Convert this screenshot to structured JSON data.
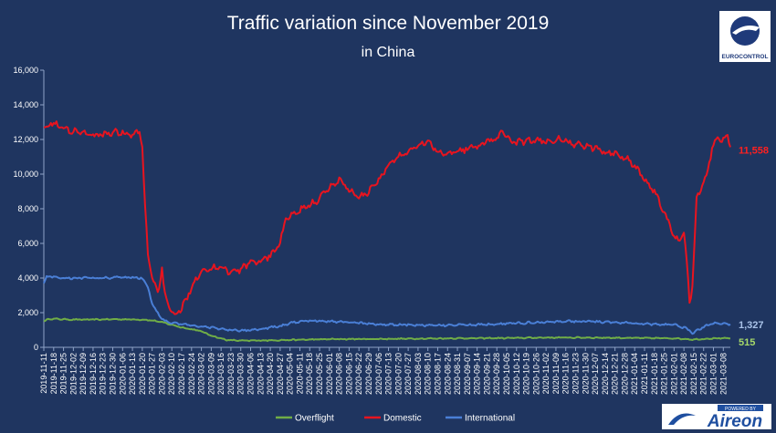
{
  "chart_data": {
    "type": "line",
    "title": "Traffic variation since November 2019",
    "subtitle": "in China",
    "xlabel": "",
    "ylabel": "",
    "ylim": [
      0,
      16000
    ],
    "yticks": [
      "0",
      "2,000",
      "4,000",
      "6,000",
      "8,000",
      "10,000",
      "12,000",
      "14,000",
      "16,000"
    ],
    "grid": false,
    "legend_position": "bottom",
    "x_start": "2019-11-11",
    "x_end": "2021-03-13",
    "x_tick_labels": [
      "2019-11-11",
      "2019-11-18",
      "2019-11-25",
      "2019-12-02",
      "2019-12-09",
      "2019-12-16",
      "2019-12-23",
      "2019-12-30",
      "2020-01-06",
      "2020-01-13",
      "2020-01-20",
      "2020-01-27",
      "2020-02-03",
      "2020-02-10",
      "2020-02-17",
      "2020-02-24",
      "2020-03-02",
      "2020-03-09",
      "2020-03-16",
      "2020-03-23",
      "2020-03-30",
      "2020-04-06",
      "2020-04-13",
      "2020-04-20",
      "2020-04-27",
      "2020-05-04",
      "2020-05-11",
      "2020-05-18",
      "2020-05-25",
      "2020-06-01",
      "2020-06-08",
      "2020-06-15",
      "2020-06-22",
      "2020-06-29",
      "2020-07-06",
      "2020-07-13",
      "2020-07-20",
      "2020-07-27",
      "2020-08-03",
      "2020-08-10",
      "2020-08-17",
      "2020-08-24",
      "2020-08-31",
      "2020-09-07",
      "2020-09-14",
      "2020-09-21",
      "2020-09-28",
      "2020-10-05",
      "2020-10-12",
      "2020-10-19",
      "2020-10-26",
      "2020-11-02",
      "2020-11-09",
      "2020-11-16",
      "2020-11-23",
      "2020-11-30",
      "2020-12-07",
      "2020-12-14",
      "2020-12-21",
      "2020-12-28",
      "2021-01-04",
      "2021-01-11",
      "2021-01-18",
      "2021-01-25",
      "2021-02-01",
      "2021-02-08",
      "2021-02-15",
      "2021-02-22",
      "2021-03-01",
      "2021-03-08"
    ],
    "series": [
      {
        "name": "Overflight",
        "color": "#70ad47",
        "end_label": "515",
        "points": [
          [
            "2019-11-11",
            1500
          ],
          [
            "2019-11-15",
            1650
          ],
          [
            "2019-12-01",
            1600
          ],
          [
            "2019-12-15",
            1600
          ],
          [
            "2020-01-01",
            1620
          ],
          [
            "2020-01-20",
            1600
          ],
          [
            "2020-01-27",
            1550
          ],
          [
            "2020-02-03",
            1450
          ],
          [
            "2020-02-10",
            1300
          ],
          [
            "2020-02-17",
            1150
          ],
          [
            "2020-03-01",
            950
          ],
          [
            "2020-03-10",
            650
          ],
          [
            "2020-03-20",
            420
          ],
          [
            "2020-04-01",
            380
          ],
          [
            "2020-05-01",
            420
          ],
          [
            "2020-06-01",
            470
          ],
          [
            "2020-07-01",
            480
          ],
          [
            "2020-08-01",
            500
          ],
          [
            "2020-09-01",
            520
          ],
          [
            "2020-10-01",
            530
          ],
          [
            "2020-11-01",
            560
          ],
          [
            "2020-12-01",
            560
          ],
          [
            "2021-01-01",
            540
          ],
          [
            "2021-02-01",
            520
          ],
          [
            "2021-02-15",
            450
          ],
          [
            "2021-03-01",
            520
          ],
          [
            "2021-03-13",
            515
          ]
        ]
      },
      {
        "name": "Domestic",
        "color": "#e8141f",
        "end_label": "11,558",
        "points": [
          [
            "2019-11-11",
            12700
          ],
          [
            "2019-11-18",
            13000
          ],
          [
            "2019-11-25",
            12600
          ],
          [
            "2019-12-02",
            12500
          ],
          [
            "2019-12-09",
            12400
          ],
          [
            "2019-12-16",
            12200
          ],
          [
            "2019-12-23",
            12300
          ],
          [
            "2019-12-30",
            12400
          ],
          [
            "2020-01-06",
            12400
          ],
          [
            "2020-01-13",
            12200
          ],
          [
            "2020-01-18",
            12500
          ],
          [
            "2020-01-20",
            11500
          ],
          [
            "2020-01-22",
            8000
          ],
          [
            "2020-01-24",
            5500
          ],
          [
            "2020-01-27",
            4000
          ],
          [
            "2020-01-31",
            3200
          ],
          [
            "2020-02-03",
            4500
          ],
          [
            "2020-02-05",
            3000
          ],
          [
            "2020-02-08",
            2300
          ],
          [
            "2020-02-10",
            1900
          ],
          [
            "2020-02-14",
            2000
          ],
          [
            "2020-02-17",
            2200
          ],
          [
            "2020-02-24",
            3500
          ],
          [
            "2020-03-02",
            4500
          ],
          [
            "2020-03-09",
            4500
          ],
          [
            "2020-03-16",
            4700
          ],
          [
            "2020-03-23",
            4300
          ],
          [
            "2020-03-30",
            4500
          ],
          [
            "2020-04-06",
            4900
          ],
          [
            "2020-04-13",
            5000
          ],
          [
            "2020-04-20",
            5300
          ],
          [
            "2020-04-27",
            6000
          ],
          [
            "2020-05-01",
            7500
          ],
          [
            "2020-05-04",
            7500
          ],
          [
            "2020-05-11",
            7900
          ],
          [
            "2020-05-18",
            8200
          ],
          [
            "2020-05-25",
            8600
          ],
          [
            "2020-06-01",
            9200
          ],
          [
            "2020-06-08",
            9700
          ],
          [
            "2020-06-15",
            9100
          ],
          [
            "2020-06-22",
            8600
          ],
          [
            "2020-06-29",
            9000
          ],
          [
            "2020-07-06",
            9700
          ],
          [
            "2020-07-13",
            10500
          ],
          [
            "2020-07-20",
            11000
          ],
          [
            "2020-07-27",
            11300
          ],
          [
            "2020-08-03",
            11700
          ],
          [
            "2020-08-10",
            11900
          ],
          [
            "2020-08-17",
            11300
          ],
          [
            "2020-08-24",
            11200
          ],
          [
            "2020-08-31",
            11300
          ],
          [
            "2020-09-07",
            11500
          ],
          [
            "2020-09-14",
            11600
          ],
          [
            "2020-09-21",
            11900
          ],
          [
            "2020-09-28",
            12000
          ],
          [
            "2020-10-02",
            12500
          ],
          [
            "2020-10-07",
            12000
          ],
          [
            "2020-10-12",
            11800
          ],
          [
            "2020-10-19",
            11900
          ],
          [
            "2020-10-26",
            11900
          ],
          [
            "2020-11-02",
            11900
          ],
          [
            "2020-11-09",
            12000
          ],
          [
            "2020-11-16",
            11900
          ],
          [
            "2020-11-23",
            11700
          ],
          [
            "2020-11-30",
            11600
          ],
          [
            "2020-12-07",
            11500
          ],
          [
            "2020-12-14",
            11300
          ],
          [
            "2020-12-21",
            11200
          ],
          [
            "2020-12-28",
            11000
          ],
          [
            "2021-01-04",
            10500
          ],
          [
            "2021-01-11",
            9700
          ],
          [
            "2021-01-18",
            9000
          ],
          [
            "2021-01-25",
            7800
          ],
          [
            "2021-02-01",
            6400
          ],
          [
            "2021-02-05",
            6200
          ],
          [
            "2021-02-08",
            6600
          ],
          [
            "2021-02-10",
            5000
          ],
          [
            "2021-02-12",
            2600
          ],
          [
            "2021-02-14",
            3500
          ],
          [
            "2021-02-17",
            8500
          ],
          [
            "2021-02-20",
            9200
          ],
          [
            "2021-02-24",
            9800
          ],
          [
            "2021-02-28",
            11500
          ],
          [
            "2021-03-03",
            12000
          ],
          [
            "2021-03-08",
            12000
          ],
          [
            "2021-03-11",
            12200
          ],
          [
            "2021-03-13",
            11558
          ]
        ]
      },
      {
        "name": "International",
        "color": "#4a7fd6",
        "end_label": "1,327",
        "points": [
          [
            "2019-11-11",
            3700
          ],
          [
            "2019-11-13",
            4100
          ],
          [
            "2019-11-25",
            4000
          ],
          [
            "2019-12-09",
            4000
          ],
          [
            "2019-12-23",
            4000
          ],
          [
            "2020-01-06",
            4050
          ],
          [
            "2020-01-20",
            4000
          ],
          [
            "2020-01-24",
            3500
          ],
          [
            "2020-01-27",
            2500
          ],
          [
            "2020-01-31",
            2000
          ],
          [
            "2020-02-03",
            1600
          ],
          [
            "2020-02-10",
            1400
          ],
          [
            "2020-02-17",
            1350
          ],
          [
            "2020-02-24",
            1250
          ],
          [
            "2020-03-02",
            1200
          ],
          [
            "2020-03-09",
            1150
          ],
          [
            "2020-03-16",
            1050
          ],
          [
            "2020-03-23",
            1000
          ],
          [
            "2020-03-30",
            950
          ],
          [
            "2020-04-06",
            1000
          ],
          [
            "2020-04-13",
            1050
          ],
          [
            "2020-04-20",
            1150
          ],
          [
            "2020-04-27",
            1200
          ],
          [
            "2020-05-04",
            1400
          ],
          [
            "2020-05-11",
            1500
          ],
          [
            "2020-05-18",
            1550
          ],
          [
            "2020-06-01",
            1500
          ],
          [
            "2020-06-15",
            1450
          ],
          [
            "2020-07-01",
            1350
          ],
          [
            "2020-07-15",
            1300
          ],
          [
            "2020-08-01",
            1300
          ],
          [
            "2020-08-15",
            1250
          ],
          [
            "2020-09-01",
            1300
          ],
          [
            "2020-09-15",
            1300
          ],
          [
            "2020-10-01",
            1350
          ],
          [
            "2020-10-15",
            1400
          ],
          [
            "2020-11-01",
            1450
          ],
          [
            "2020-11-15",
            1500
          ],
          [
            "2020-12-01",
            1500
          ],
          [
            "2020-12-15",
            1450
          ],
          [
            "2021-01-01",
            1400
          ],
          [
            "2021-01-15",
            1350
          ],
          [
            "2021-02-01",
            1300
          ],
          [
            "2021-02-10",
            1100
          ],
          [
            "2021-02-14",
            800
          ],
          [
            "2021-02-20",
            1100
          ],
          [
            "2021-03-01",
            1400
          ],
          [
            "2021-03-13",
            1327
          ]
        ]
      }
    ]
  },
  "logos": {
    "eurocontrol_text": "EUROCONTROL",
    "aireon_powered": "POWERED BY",
    "aireon_text": "Aireon"
  },
  "colors": {
    "background": "#1f3560",
    "axis": "#8fa3c8",
    "text": "#ffffff"
  }
}
